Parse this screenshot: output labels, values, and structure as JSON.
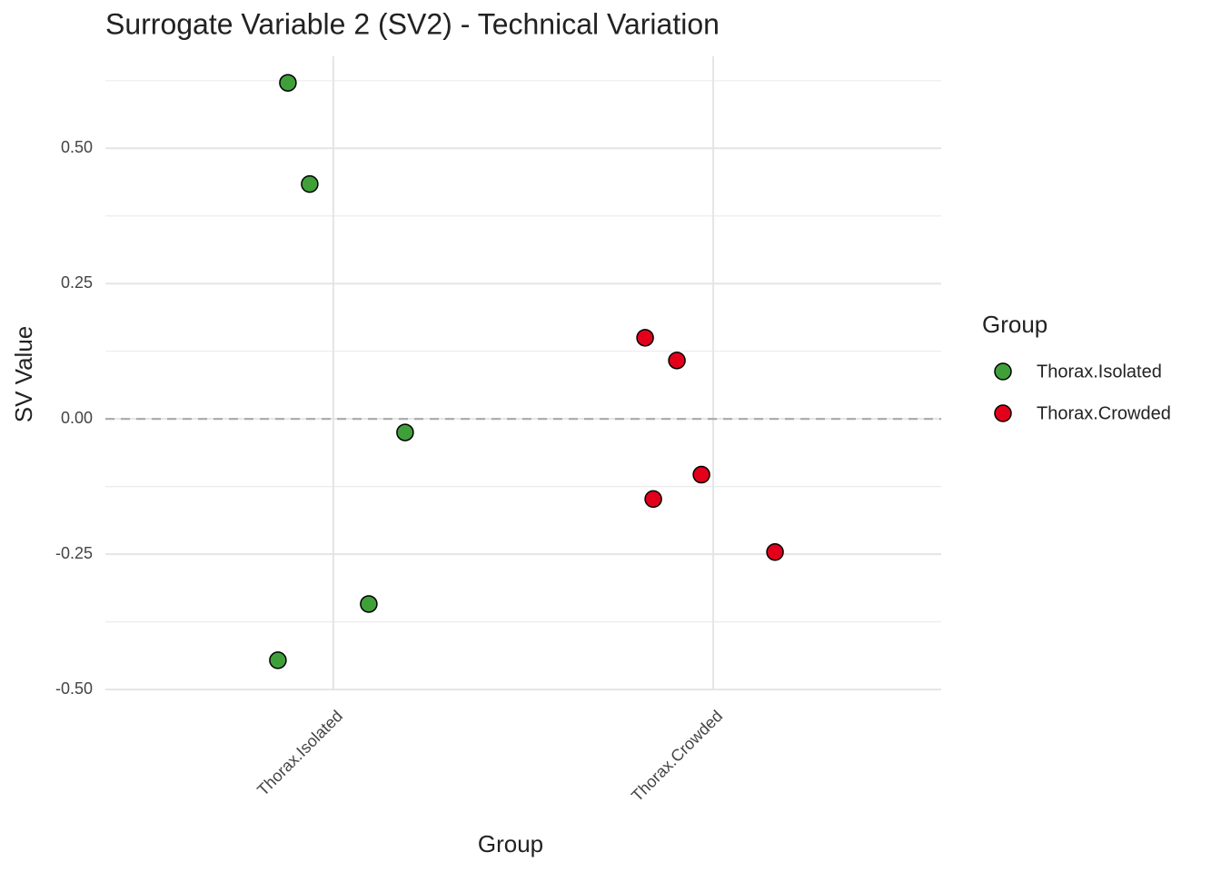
{
  "chart_data": {
    "type": "scatter",
    "title": "Surrogate Variable 2 (SV2) - Technical Variation",
    "x_label": "Group",
    "y_label": "SV Value",
    "categories": [
      "Thorax.Isolated",
      "Thorax.Crowded"
    ],
    "series": [
      {
        "name": "Thorax.Isolated",
        "color": "#3fa03a",
        "values": [
          0.621,
          0.434,
          -0.025,
          -0.342,
          -0.446
        ]
      },
      {
        "name": "Thorax.Crowded",
        "color": "#e3001b",
        "values": [
          0.15,
          0.108,
          -0.103,
          -0.148,
          -0.246
        ]
      }
    ],
    "ylim": [
      -0.52,
      0.67
    ],
    "yticks": [
      {
        "value": -0.5,
        "label": "-0.50"
      },
      {
        "value": -0.25,
        "label": "-0.25"
      },
      {
        "value": 0,
        "label": "0.00"
      },
      {
        "value": 0.25,
        "label": "0.25"
      },
      {
        "value": 0.5,
        "label": "0.50"
      }
    ],
    "hline": 0,
    "grid": true,
    "legend_title": "Group",
    "legend_position": "right"
  }
}
